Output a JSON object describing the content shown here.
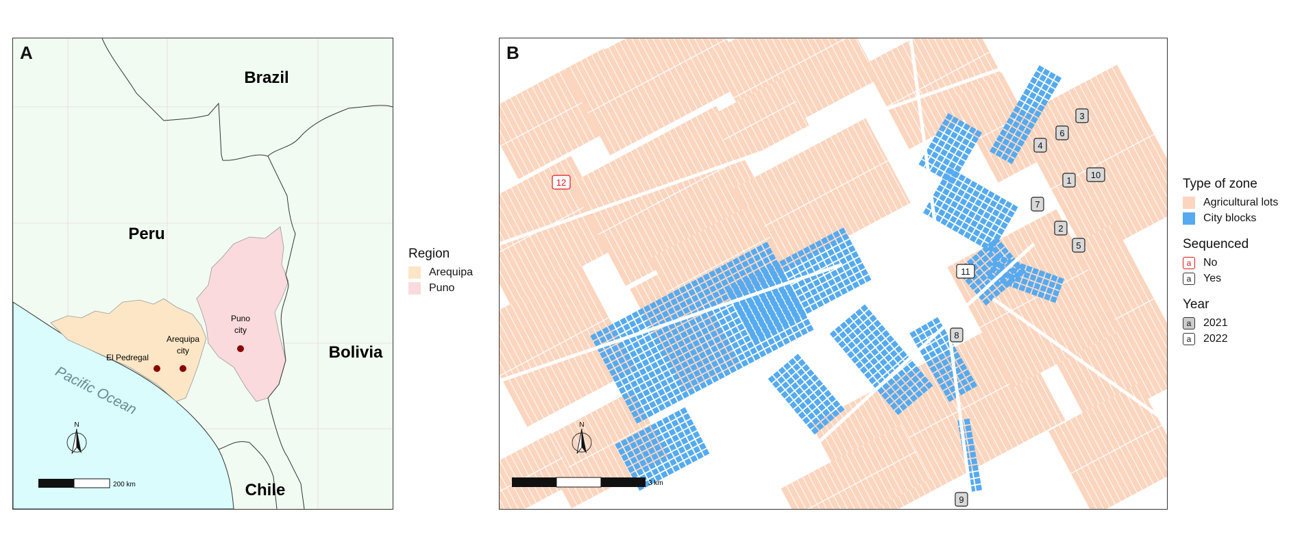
{
  "panel_a": {
    "letter": "A",
    "labels": {
      "brazil": "Brazil",
      "peru": "Peru",
      "bolivia": "Bolivia",
      "chile": "Chile",
      "pacific": "Pacific Ocean",
      "puno_city": [
        "Puno",
        "city"
      ],
      "arequipa_city": [
        "Arequipa",
        "city"
      ],
      "el_pedregal": "El Pedregal"
    },
    "north_label": "N",
    "scale_label": "200 km",
    "colors": {
      "land": "#f1fbf1",
      "ocean": "#dafcfc",
      "arequipa": "#fce6c6",
      "puno": "#fadadd",
      "city_dot": "#8b0000",
      "border": "#333333"
    }
  },
  "panel_b": {
    "letter": "B",
    "north_label": "N",
    "scale_label": "3 km",
    "colors": {
      "agricultural": "#fcd5bf",
      "city": "#56aaf0",
      "lot_line": "#ffffff"
    },
    "markers": [
      {
        "label": "1",
        "year": "2021",
        "sequenced": "Yes"
      },
      {
        "label": "2",
        "year": "2021",
        "sequenced": "Yes"
      },
      {
        "label": "3",
        "year": "2021",
        "sequenced": "Yes"
      },
      {
        "label": "4",
        "year": "2021",
        "sequenced": "Yes"
      },
      {
        "label": "5",
        "year": "2021",
        "sequenced": "Yes"
      },
      {
        "label": "6",
        "year": "2021",
        "sequenced": "Yes"
      },
      {
        "label": "7",
        "year": "2021",
        "sequenced": "Yes"
      },
      {
        "label": "8",
        "year": "2021",
        "sequenced": "Yes"
      },
      {
        "label": "9",
        "year": "2021",
        "sequenced": "Yes"
      },
      {
        "label": "10",
        "year": "2021",
        "sequenced": "Yes"
      },
      {
        "label": "11",
        "year": "2022",
        "sequenced": "Yes"
      },
      {
        "label": "12",
        "year": "2022",
        "sequenced": "No"
      }
    ]
  },
  "legend_region": {
    "title": "Region",
    "items": [
      {
        "label": "Arequipa",
        "color": "#fce6c6"
      },
      {
        "label": "Puno",
        "color": "#fadadd"
      }
    ]
  },
  "legend_zone": {
    "title": "Type of zone",
    "items": [
      {
        "label": "Agricultural lots",
        "color": "#fcd5bf"
      },
      {
        "label": "City blocks",
        "color": "#56aaf0"
      }
    ]
  },
  "legend_sequenced": {
    "title": "Sequenced",
    "swatch_letter": "a",
    "items": [
      {
        "label": "No",
        "color": "#d7191c"
      },
      {
        "label": "Yes",
        "color": "#111111"
      }
    ]
  },
  "legend_year": {
    "title": "Year",
    "swatch_letter": "a",
    "items": [
      {
        "label": "2021",
        "color": "#cccccc"
      },
      {
        "label": "2022",
        "color": "#ffffff"
      }
    ]
  }
}
